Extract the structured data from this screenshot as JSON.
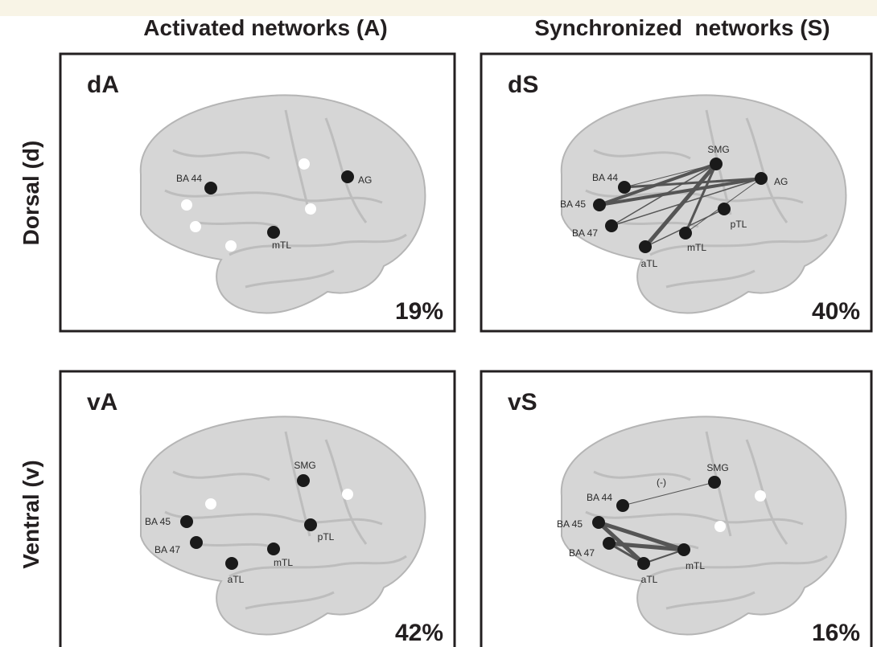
{
  "column_headers": [
    "Activated networks (A)",
    "Synchronized  networks (S)"
  ],
  "row_headers": [
    "Dorsal (d)",
    "Ventral (v)"
  ],
  "panels": [
    {
      "label": "dA",
      "percent": "19%",
      "nodes": [
        "BA 44",
        "AG",
        "mTL"
      ]
    },
    {
      "label": "dS",
      "percent": "40%",
      "nodes": [
        "SMG",
        "BA 44",
        "AG",
        "BA 45",
        "pTL",
        "BA 47",
        "mTL",
        "aTL"
      ]
    },
    {
      "label": "vA",
      "percent": "42%",
      "nodes": [
        "SMG",
        "BA 45",
        "pTL",
        "BA 47",
        "mTL",
        "aTL"
      ]
    },
    {
      "label": "vS",
      "percent": "16%",
      "nodes": [
        "SMG",
        "BA 44",
        "BA 45",
        "BA 47",
        "mTL",
        "aTL"
      ],
      "annotation": "(-)"
    }
  ]
}
